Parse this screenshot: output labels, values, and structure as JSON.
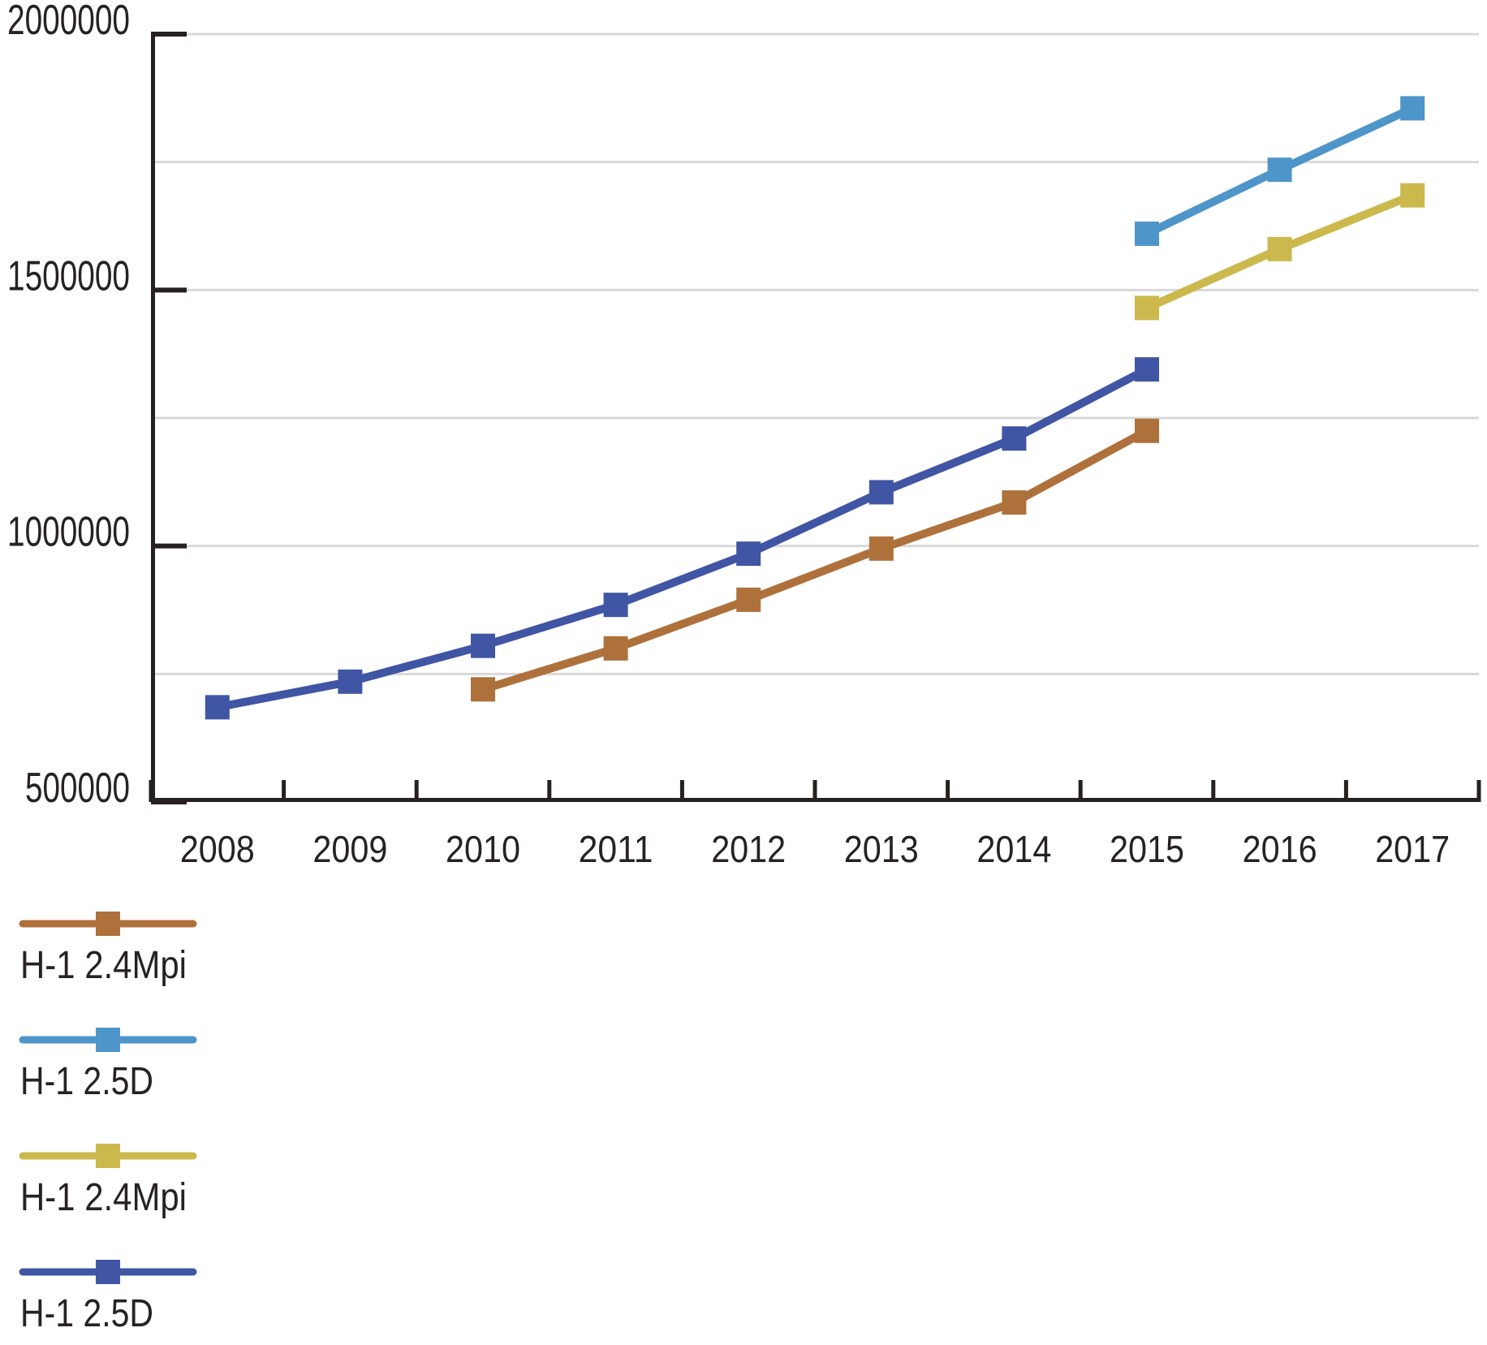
{
  "chart_data": {
    "type": "line",
    "title": "",
    "xlabel": "",
    "ylabel": "",
    "x_categories": [
      "2008",
      "2009",
      "2010",
      "2011",
      "2012",
      "2013",
      "2014",
      "2015",
      "2016",
      "2017"
    ],
    "ylim": [
      500000,
      2000000
    ],
    "y_tick_values": [
      2000000,
      1500000,
      1000000,
      500000
    ],
    "y_tick_labels": [
      "2000000",
      "1500000",
      "1000000",
      "500000"
    ],
    "gridline_values": [
      750000,
      1000000,
      1250000,
      1500000,
      1750000,
      2000000
    ],
    "grid": "horizontal",
    "legend_position": "bottom-left vertical list",
    "marker_shape": "square",
    "series": [
      {
        "name": "H-1 2.4Mpi",
        "color": "#af713c",
        "marker": "square",
        "x": [
          "2010",
          "2011",
          "2012",
          "2013",
          "2014",
          "2015"
        ],
        "values": [
          720000,
          800000,
          895000,
          995000,
          1085000,
          1225000
        ]
      },
      {
        "name": "H-1 2.5D",
        "color": "#4e95ca",
        "marker": "square",
        "x": [
          "2015",
          "2016",
          "2017"
        ],
        "values": [
          1610000,
          1735000,
          1855000
        ]
      },
      {
        "name": "H-1 2.4Mpi",
        "color": "#cbb94e",
        "marker": "square",
        "x": [
          "2015",
          "2016",
          "2017"
        ],
        "values": [
          1465000,
          1580000,
          1685000
        ]
      },
      {
        "name": "H-1 2.5D",
        "color": "#4055a4",
        "marker": "square",
        "x": [
          "2008",
          "2009",
          "2010",
          "2011",
          "2012",
          "2013",
          "2014",
          "2015"
        ],
        "values": [
          685000,
          735000,
          805000,
          885000,
          985000,
          1105000,
          1210000,
          1345000
        ]
      }
    ]
  },
  "colors": {
    "background": "#ffffff",
    "axis": "#262020",
    "gridline": "#d9d9d9",
    "label_text": "#262223",
    "series_brown": "#af713c",
    "series_light_blue": "#4e95ca",
    "series_yellow": "#cbb94e",
    "series_navy": "#4055a4"
  }
}
